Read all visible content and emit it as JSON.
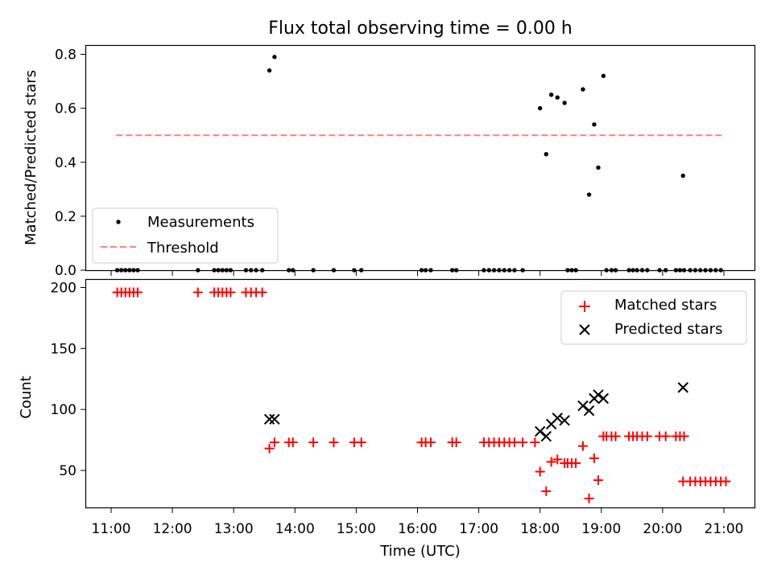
{
  "title": "Flux total observing time = 0.00 h",
  "colors": {
    "measurement": "#000000",
    "threshold": "#ff7f7f",
    "matched": "#ff0000",
    "predicted": "#000000"
  },
  "chart_data": [
    {
      "type": "scatter",
      "title": "Flux total observing time = 0.00 h",
      "xlabel": "",
      "ylabel": "Matched/Predicted stars",
      "xlim": [
        "10:50",
        "21:30"
      ],
      "ylim": [
        0,
        0.83
      ],
      "yticks": [
        0.0,
        0.2,
        0.4,
        0.6,
        0.8
      ],
      "ytick_labels": [
        "0.0",
        "0.2",
        "0.4",
        "0.6",
        "0.8"
      ],
      "legend_position": "lower-left",
      "grid": false,
      "threshold": {
        "name": "Threshold",
        "y": 0.5,
        "x_range": [
          "11:05",
          "20:59"
        ]
      },
      "series": [
        {
          "name": "Measurements",
          "marker": "dot",
          "points": [
            [
              "11:06",
              0
            ],
            [
              "11:10",
              0
            ],
            [
              "11:14",
              0
            ],
            [
              "11:18",
              0
            ],
            [
              "11:22",
              0
            ],
            [
              "11:26",
              0
            ],
            [
              "12:25",
              0
            ],
            [
              "12:41",
              0
            ],
            [
              "12:45",
              0
            ],
            [
              "12:49",
              0
            ],
            [
              "12:53",
              0
            ],
            [
              "12:57",
              0
            ],
            [
              "13:12",
              0
            ],
            [
              "13:17",
              0
            ],
            [
              "13:22",
              0
            ],
            [
              "13:28",
              0
            ],
            [
              "13:35",
              0.74
            ],
            [
              "13:40",
              0.79
            ],
            [
              "13:54",
              0
            ],
            [
              "13:58",
              0
            ],
            [
              "14:18",
              0
            ],
            [
              "14:38",
              0
            ],
            [
              "14:58",
              0
            ],
            [
              "15:05",
              0
            ],
            [
              "16:04",
              0
            ],
            [
              "16:08",
              0
            ],
            [
              "16:13",
              0
            ],
            [
              "16:34",
              0
            ],
            [
              "16:38",
              0
            ],
            [
              "17:05",
              0
            ],
            [
              "17:10",
              0
            ],
            [
              "17:15",
              0
            ],
            [
              "17:20",
              0
            ],
            [
              "17:25",
              0
            ],
            [
              "17:30",
              0
            ],
            [
              "17:35",
              0
            ],
            [
              "17:43",
              0
            ],
            [
              "18:00",
              0.6
            ],
            [
              "18:06",
              0.43
            ],
            [
              "18:11",
              0.65
            ],
            [
              "18:17",
              0.64
            ],
            [
              "18:24",
              0.62
            ],
            [
              "18:27",
              0
            ],
            [
              "18:31",
              0
            ],
            [
              "18:35",
              0
            ],
            [
              "18:42",
              0.67
            ],
            [
              "18:48",
              0.28
            ],
            [
              "18:53",
              0.54
            ],
            [
              "18:57",
              0.38
            ],
            [
              "19:02",
              0.72
            ],
            [
              "19:05",
              0
            ],
            [
              "19:10",
              0
            ],
            [
              "19:14",
              0
            ],
            [
              "19:27",
              0
            ],
            [
              "19:31",
              0
            ],
            [
              "19:35",
              0
            ],
            [
              "19:40",
              0
            ],
            [
              "19:45",
              0
            ],
            [
              "19:57",
              0
            ],
            [
              "20:03",
              0
            ],
            [
              "20:13",
              0
            ],
            [
              "20:17",
              0
            ],
            [
              "20:21",
              0
            ],
            [
              "20:20",
              0.35
            ],
            [
              "20:27",
              0
            ],
            [
              "20:32",
              0
            ],
            [
              "20:37",
              0
            ],
            [
              "20:42",
              0
            ],
            [
              "20:47",
              0
            ],
            [
              "20:52",
              0
            ],
            [
              "20:57",
              0
            ]
          ]
        }
      ]
    },
    {
      "type": "scatter",
      "title": "",
      "xlabel": "Time (UTC)",
      "ylabel": "Count",
      "xlim": [
        "10:50",
        "21:30"
      ],
      "ylim": [
        20,
        205
      ],
      "yticks": [
        50,
        100,
        150,
        200
      ],
      "ytick_labels": [
        "50",
        "100",
        "150",
        "200"
      ],
      "xticks": [
        "11:00",
        "12:00",
        "13:00",
        "14:00",
        "15:00",
        "16:00",
        "17:00",
        "18:00",
        "19:00",
        "20:00",
        "21:00"
      ],
      "legend_position": "upper-right",
      "grid": false,
      "series": [
        {
          "name": "Matched stars",
          "marker": "plus",
          "points": [
            [
              "11:06",
              196
            ],
            [
              "11:10",
              196
            ],
            [
              "11:14",
              196
            ],
            [
              "11:18",
              196
            ],
            [
              "11:22",
              196
            ],
            [
              "11:26",
              196
            ],
            [
              "12:25",
              196
            ],
            [
              "12:41",
              196
            ],
            [
              "12:45",
              196
            ],
            [
              "12:49",
              196
            ],
            [
              "12:53",
              196
            ],
            [
              "12:57",
              196
            ],
            [
              "13:12",
              196
            ],
            [
              "13:17",
              196
            ],
            [
              "13:22",
              196
            ],
            [
              "13:28",
              196
            ],
            [
              "13:35",
              68
            ],
            [
              "13:40",
              73
            ],
            [
              "13:54",
              73
            ],
            [
              "13:58",
              73
            ],
            [
              "14:18",
              73
            ],
            [
              "14:38",
              73
            ],
            [
              "14:58",
              73
            ],
            [
              "15:05",
              73
            ],
            [
              "16:04",
              73
            ],
            [
              "16:08",
              73
            ],
            [
              "16:13",
              73
            ],
            [
              "16:34",
              73
            ],
            [
              "16:38",
              73
            ],
            [
              "17:05",
              73
            ],
            [
              "17:10",
              73
            ],
            [
              "17:15",
              73
            ],
            [
              "17:20",
              73
            ],
            [
              "17:25",
              73
            ],
            [
              "17:30",
              73
            ],
            [
              "17:35",
              73
            ],
            [
              "17:43",
              73
            ],
            [
              "17:55",
              73
            ],
            [
              "18:00",
              49
            ],
            [
              "18:06",
              33
            ],
            [
              "18:11",
              57
            ],
            [
              "18:17",
              59
            ],
            [
              "18:24",
              56
            ],
            [
              "18:27",
              56
            ],
            [
              "18:31",
              56
            ],
            [
              "18:35",
              56
            ],
            [
              "18:42",
              70
            ],
            [
              "18:48",
              27
            ],
            [
              "18:53",
              60
            ],
            [
              "18:57",
              42
            ],
            [
              "19:02",
              78
            ],
            [
              "19:05",
              78
            ],
            [
              "19:10",
              78
            ],
            [
              "19:14",
              78
            ],
            [
              "19:27",
              78
            ],
            [
              "19:31",
              78
            ],
            [
              "19:35",
              78
            ],
            [
              "19:40",
              78
            ],
            [
              "19:45",
              78
            ],
            [
              "19:57",
              78
            ],
            [
              "20:03",
              78
            ],
            [
              "20:13",
              78
            ],
            [
              "20:17",
              78
            ],
            [
              "20:21",
              78
            ],
            [
              "20:20",
              41
            ],
            [
              "20:27",
              41
            ],
            [
              "20:32",
              41
            ],
            [
              "20:37",
              41
            ],
            [
              "20:42",
              41
            ],
            [
              "20:47",
              41
            ],
            [
              "20:52",
              41
            ],
            [
              "20:57",
              41
            ],
            [
              "21:02",
              41
            ]
          ]
        },
        {
          "name": "Predicted stars",
          "marker": "x",
          "points": [
            [
              "13:35",
              92
            ],
            [
              "13:40",
              92
            ],
            [
              "18:00",
              82
            ],
            [
              "18:06",
              78
            ],
            [
              "18:11",
              88
            ],
            [
              "18:17",
              93
            ],
            [
              "18:24",
              91
            ],
            [
              "18:42",
              103
            ],
            [
              "18:48",
              99
            ],
            [
              "18:53",
              109
            ],
            [
              "18:57",
              112
            ],
            [
              "19:02",
              109
            ],
            [
              "20:20",
              118
            ]
          ]
        }
      ]
    }
  ]
}
